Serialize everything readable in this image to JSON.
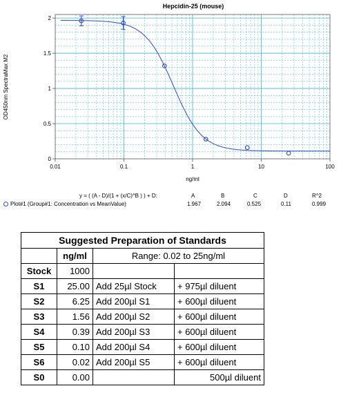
{
  "chart_data": {
    "type": "scatter",
    "title": "Hepcidin-25 (mouse)",
    "xlabel": "ng/ml",
    "ylabel": "OD450nm SpectraMax M2",
    "xscale": "log",
    "xlim": [
      0.01,
      100
    ],
    "ylim": [
      0,
      2.05
    ],
    "x_ticks": [
      "0.01",
      "0.1",
      "1",
      "10",
      "100"
    ],
    "y_ticks": [
      "0",
      "0.5",
      "1",
      "1.5",
      "2"
    ],
    "grid": true,
    "points": [
      {
        "x": 0.024,
        "y": 1.96,
        "err": 0.07
      },
      {
        "x": 0.098,
        "y": 1.93,
        "err": 0.09
      },
      {
        "x": 0.39,
        "y": 1.32,
        "err": 0.0
      },
      {
        "x": 1.56,
        "y": 0.28,
        "err": 0.0
      },
      {
        "x": 6.25,
        "y": 0.16,
        "err": 0.0
      },
      {
        "x": 25.0,
        "y": 0.08,
        "err": 0.0
      }
    ],
    "fit": {
      "A": 1.967,
      "B": 2.094,
      "C": 0.525,
      "D": 0.11
    },
    "colors": {
      "points": "#2b4bd1",
      "curve": "#2b4bd1",
      "grid": "#36b8d6"
    }
  },
  "fit_panel": {
    "equation": "y = ( (A - D)/(1 + (x/C)^B ) ) + D:",
    "headers": [
      "A",
      "B",
      "C",
      "D",
      "R^2"
    ],
    "plot_label": "Plot#1 (Group#1: Concentration vs MeanValue)",
    "values": [
      "1.967",
      "2.094",
      "0.525",
      "0.11",
      "0.999"
    ]
  },
  "table": {
    "title": "Suggested Preparation of Standards",
    "unit_header": "ng/ml",
    "range_header": "Range: 0.02 to 25ng/ml",
    "rows": [
      {
        "label": "Stock",
        "value": "1000",
        "add": "",
        "diluent": ""
      },
      {
        "label": "S1",
        "value": "25.00",
        "add": "Add  25µl Stock",
        "diluent": "+ 975µl diluent"
      },
      {
        "label": "S2",
        "value": "6.25",
        "add": "Add 200µl S1",
        "diluent": "+ 600µl diluent"
      },
      {
        "label": "S3",
        "value": "1.56",
        "add": "Add 200µl S2",
        "diluent": "+ 600µl diluent"
      },
      {
        "label": "S4",
        "value": "0.39",
        "add": "Add 200µl S3",
        "diluent": "+ 600µl diluent"
      },
      {
        "label": "S5",
        "value": "0.10",
        "add": "Add 200µl S4",
        "diluent": "+ 600µl diluent"
      },
      {
        "label": "S6",
        "value": "0.02",
        "add": "Add 200µl S5",
        "diluent": "+ 600µl diluent"
      },
      {
        "label": "S0",
        "value": "0.00",
        "add": "",
        "diluent": "500µl diluent"
      }
    ]
  }
}
